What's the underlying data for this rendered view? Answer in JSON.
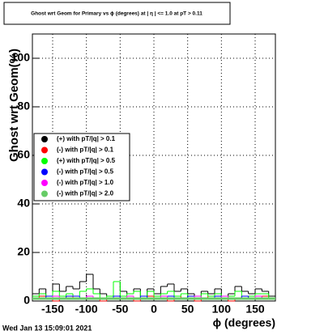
{
  "chart_data": {
    "type": "histogram",
    "title": "Ghost wrt Geom for Primary vs ϕ (degrees) at | η | <= 1.0 at pT > 0.11",
    "x_label": "ϕ (degrees)",
    "y_label": "Ghost wrt Geom(%)",
    "timestamp": "Wed Jan 13 15:09:01 2021",
    "bins": [
      -180,
      -170,
      -160,
      -150,
      -140,
      -130,
      -120,
      -110,
      -100,
      -90,
      -80,
      -70,
      -60,
      -50,
      -40,
      -30,
      -20,
      -10,
      0,
      10,
      20,
      30,
      40,
      50,
      60,
      70,
      80,
      90,
      100,
      110,
      120,
      130,
      140,
      150,
      160,
      170,
      180
    ],
    "xlim": [
      -180,
      180
    ],
    "xticks": [
      -150,
      -100,
      -50,
      0,
      50,
      100,
      150
    ],
    "ylim": [
      0,
      110
    ],
    "yticks": [
      0,
      20,
      40,
      60,
      80,
      100
    ],
    "grid": true,
    "legend": "left",
    "series": [
      {
        "name": "(+) with pT/|q| > 0.1",
        "color": "#000000",
        "values": [
          3,
          5,
          2,
          7,
          4,
          6,
          5,
          8,
          11,
          5,
          3,
          2,
          8,
          4,
          3,
          5,
          2,
          5,
          3,
          6,
          7,
          4,
          5,
          3,
          2,
          4,
          3,
          5,
          2,
          3,
          6,
          4,
          3,
          5,
          4,
          2
        ]
      },
      {
        "name": "(-) with pT/|q| > 0.1",
        "color": "#ff0000",
        "values": [
          1,
          2,
          1,
          0,
          1,
          2,
          1,
          1,
          2,
          1,
          0,
          1,
          2,
          1,
          1,
          0,
          1,
          2,
          1,
          1,
          0,
          2,
          1,
          1,
          0,
          1,
          2,
          1,
          1,
          0,
          1,
          2,
          1,
          1,
          2,
          1
        ]
      },
      {
        "name": "(+) with pT/|q| > 0.5",
        "color": "#00ff00",
        "values": [
          2,
          3,
          1,
          4,
          2,
          3,
          2,
          4,
          5,
          3,
          1,
          2,
          8,
          2,
          3,
          4,
          1,
          4,
          2,
          3,
          4,
          2,
          3,
          2,
          1,
          3,
          2,
          3,
          1,
          2,
          4,
          2,
          2,
          3,
          3,
          1
        ]
      },
      {
        "name": "(-) with pT/|q| > 0.5",
        "color": "#0000ff",
        "values": [
          1,
          1,
          2,
          1,
          1,
          2,
          2,
          1,
          2,
          1,
          1,
          1,
          2,
          1,
          1,
          1,
          2,
          1,
          1,
          1,
          2,
          1,
          1,
          2,
          1,
          1,
          1,
          2,
          1,
          1,
          1,
          2,
          1,
          1,
          1,
          1
        ]
      },
      {
        "name": "(-) with pT/|q| > 1.0",
        "color": "#ff00ff",
        "values": [
          1,
          1,
          1,
          2,
          1,
          1,
          1,
          1,
          2,
          1,
          1,
          1,
          1,
          1,
          2,
          1,
          1,
          1,
          1,
          2,
          1,
          1,
          1,
          1,
          2,
          1,
          1,
          1,
          2,
          1,
          1,
          1,
          1,
          2,
          1,
          1
        ]
      },
      {
        "name": "(-) with pT/|q| > 2.0",
        "color": "#66cc66",
        "values": [
          1,
          1,
          1,
          1,
          1,
          1,
          1,
          1,
          1,
          1,
          1,
          1,
          1,
          1,
          1,
          1,
          1,
          1,
          1,
          1,
          1,
          1,
          1,
          1,
          1,
          1,
          1,
          1,
          1,
          1,
          1,
          1,
          1,
          1,
          1,
          1
        ]
      }
    ]
  }
}
